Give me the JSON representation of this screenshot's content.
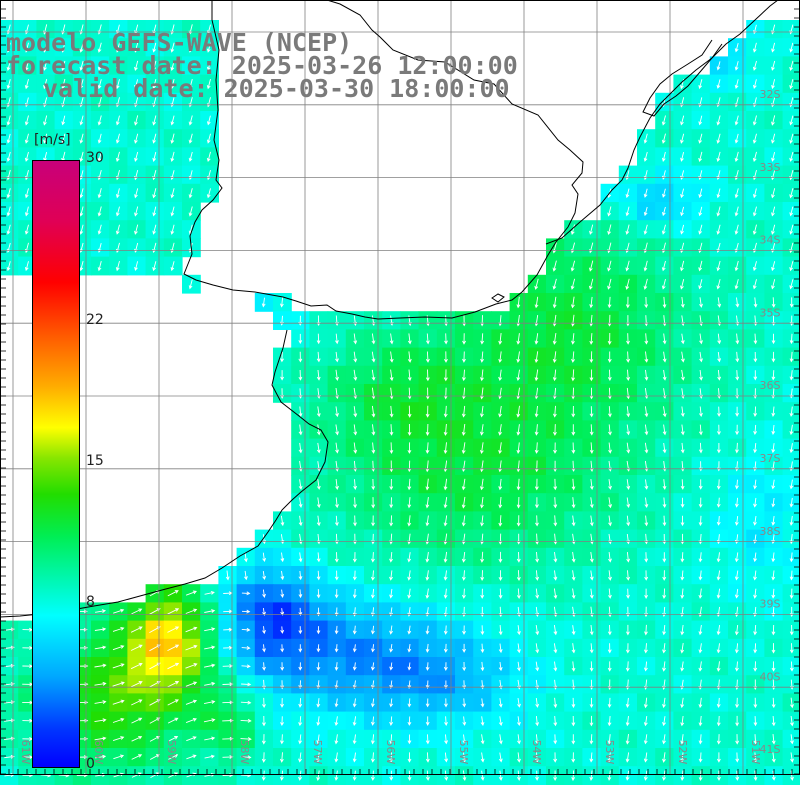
{
  "header": {
    "line1": "modelo GEFS-WAVE (NCEP)",
    "line2": "forecast date: 2025-03-26 12:00:00",
    "line3": "valid date: 2025-03-30 18:00:00"
  },
  "colorbar": {
    "unit": "[m/s]",
    "min": 0,
    "max": 30,
    "ticks": [
      "30",
      "22",
      "15",
      "8",
      "0"
    ],
    "tick_values": [
      30,
      22,
      15,
      8,
      0
    ]
  },
  "map": {
    "parameter": "wind speed",
    "lat_labels": [
      "32S",
      "33S",
      "34S",
      "35S",
      "36S",
      "37S",
      "38S",
      "39S",
      "40S",
      "41S"
    ],
    "lat_values": [
      -32,
      -33,
      -34,
      -35,
      -36,
      -37,
      -38,
      -39,
      -40,
      -41
    ],
    "lon_labels": [
      "61W",
      "60W",
      "59W",
      "58W",
      "57W",
      "56W",
      "55W",
      "54W",
      "53W",
      "52W",
      "51W"
    ],
    "lon_values": [
      -61,
      -60,
      -59,
      -58,
      -57,
      -56,
      -55,
      -54,
      -53,
      -52,
      -51
    ],
    "colors": {
      "land": "#ffffff",
      "coastline": "#000000",
      "grid": "#808080",
      "arrow": "#ffffff"
    },
    "icons": [
      "wind-arrow-icon"
    ]
  }
}
